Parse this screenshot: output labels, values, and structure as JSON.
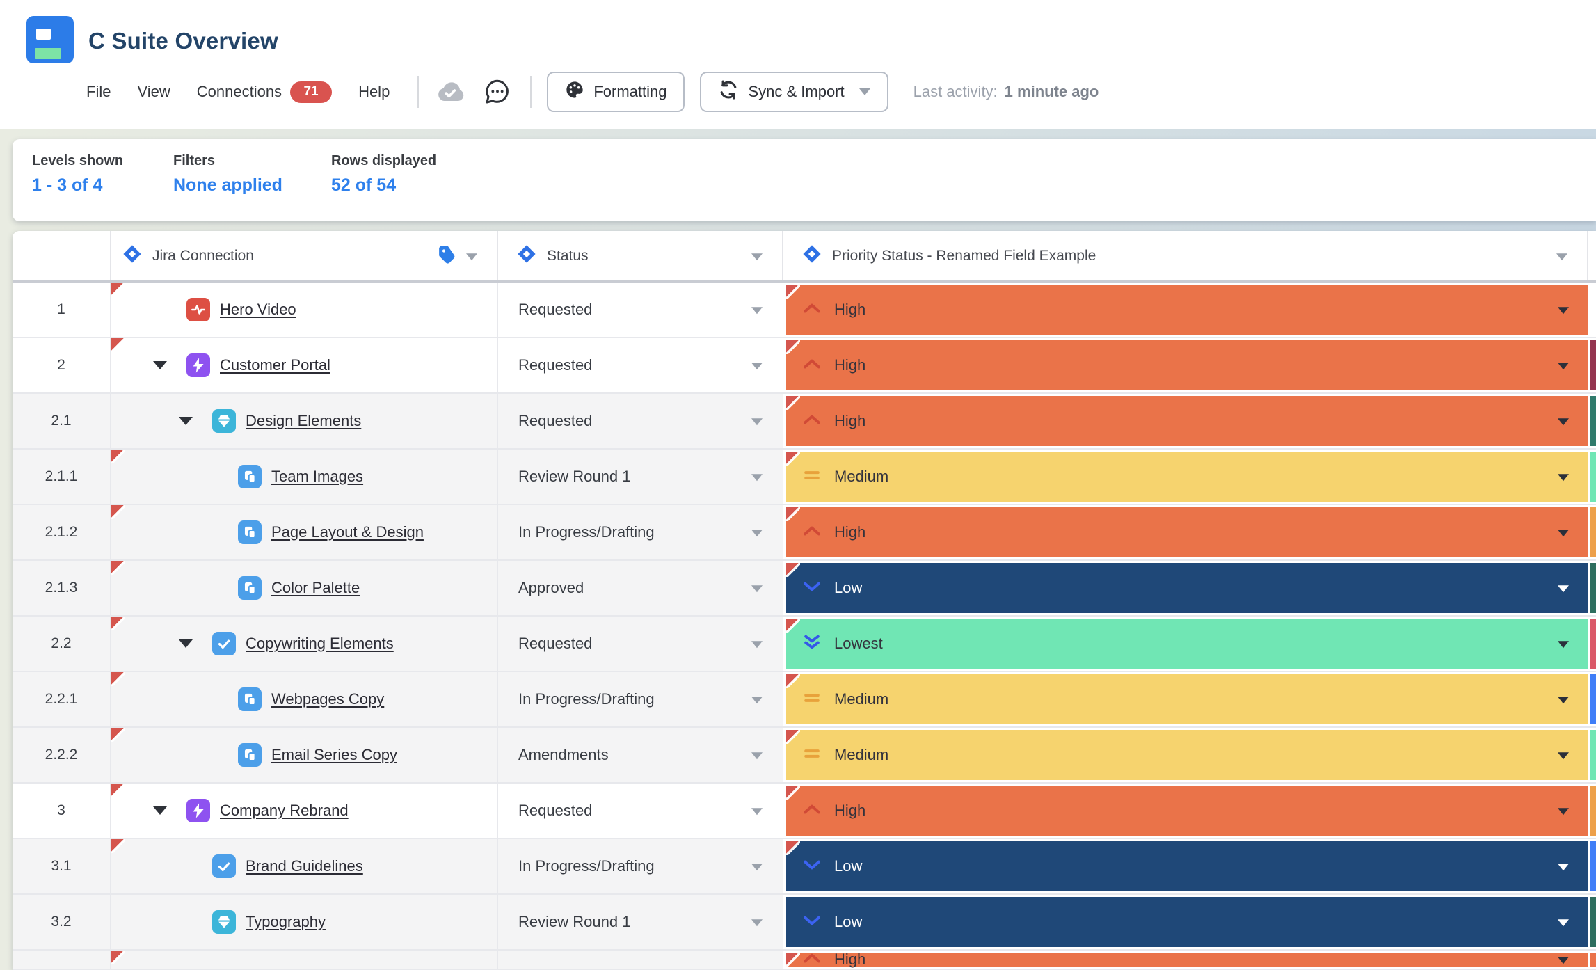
{
  "header": {
    "title": "C Suite Overview",
    "menu": [
      {
        "label": "File"
      },
      {
        "label": "View"
      },
      {
        "label": "Connections",
        "badge": "71"
      },
      {
        "label": "Help"
      }
    ],
    "formatting_button": "Formatting",
    "sync_button": "Sync & Import",
    "last_activity_label": "Last activity:",
    "last_activity_value": "1 minute ago"
  },
  "summary": {
    "items": [
      {
        "label": "Levels shown",
        "value": "1 - 3 of 4"
      },
      {
        "label": "Filters",
        "value": "None applied"
      },
      {
        "label": "Rows displayed",
        "value": "52 of 54"
      }
    ]
  },
  "table": {
    "columns": [
      {
        "key": "num",
        "label": ""
      },
      {
        "key": "jira",
        "label": "Jira Connection",
        "icons": [
          "jira-diamond-icon",
          "tag-icon",
          "dropdown-caret"
        ]
      },
      {
        "key": "status",
        "label": "Status",
        "icons": [
          "jira-diamond-icon",
          "dropdown-caret"
        ]
      },
      {
        "key": "priority",
        "label": "Priority Status - Renamed Field Example",
        "icons": [
          "jira-diamond-icon",
          "dropdown-caret"
        ]
      }
    ],
    "rows": [
      {
        "num": "1",
        "label": "Hero Video",
        "icon": "video",
        "level": 1,
        "expand": false,
        "jira_flag": true,
        "status": "Requested",
        "priority": "High",
        "priority_flag": true,
        "edge": "",
        "shade": "white"
      },
      {
        "num": "2",
        "label": "Customer Portal",
        "icon": "epic",
        "level": 1,
        "expand": true,
        "jira_flag": true,
        "status": "Requested",
        "priority": "High",
        "priority_flag": true,
        "edge": "#93344F",
        "shade": "white"
      },
      {
        "num": "2.1",
        "label": "Design Elements",
        "icon": "design",
        "level": 2,
        "expand": true,
        "jira_flag": false,
        "status": "Requested",
        "priority": "High",
        "priority_flag": true,
        "edge": "#2F7A6B",
        "shade": "gray"
      },
      {
        "num": "2.1.1",
        "label": "Team Images",
        "icon": "subtask",
        "level": 3,
        "expand": false,
        "jira_flag": true,
        "status": "Review Round 1",
        "priority": "Medium",
        "priority_flag": true,
        "edge": "#70E6B4",
        "shade": "gray"
      },
      {
        "num": "2.1.2",
        "label": "Page Layout & Design",
        "icon": "subtask",
        "level": 3,
        "expand": false,
        "jira_flag": true,
        "status": "In Progress/Drafting",
        "priority": "High",
        "priority_flag": true,
        "edge": "#EDA04A",
        "shade": "gray"
      },
      {
        "num": "2.1.3",
        "label": "Color Palette",
        "icon": "subtask",
        "level": 3,
        "expand": false,
        "jira_flag": true,
        "status": "Approved",
        "priority": "Low",
        "priority_flag": true,
        "edge": "#2E6E5F",
        "shade": "gray"
      },
      {
        "num": "2.2",
        "label": "Copywriting Elements",
        "icon": "task",
        "level": 2,
        "expand": true,
        "jira_flag": true,
        "status": "Requested",
        "priority": "Lowest",
        "priority_flag": true,
        "edge": "#DA5868",
        "shade": "gray"
      },
      {
        "num": "2.2.1",
        "label": "Webpages Copy",
        "icon": "subtask",
        "level": 3,
        "expand": false,
        "jira_flag": true,
        "status": "In Progress/Drafting",
        "priority": "Medium",
        "priority_flag": true,
        "edge": "#3F7EF7",
        "shade": "gray"
      },
      {
        "num": "2.2.2",
        "label": "Email Series Copy",
        "icon": "subtask",
        "level": 3,
        "expand": false,
        "jira_flag": true,
        "status": "Amendments",
        "priority": "Medium",
        "priority_flag": true,
        "edge": "#70E6B4",
        "shade": "gray"
      },
      {
        "num": "3",
        "label": "Company Rebrand",
        "icon": "epic",
        "level": 1,
        "expand": true,
        "jira_flag": true,
        "status": "Requested",
        "priority": "High",
        "priority_flag": true,
        "edge": "#EDA04A",
        "shade": "white"
      },
      {
        "num": "3.1",
        "label": "Brand Guidelines",
        "icon": "task",
        "level": 2,
        "expand": false,
        "jira_flag": true,
        "status": "In Progress/Drafting",
        "priority": "Low",
        "priority_flag": true,
        "edge": "#3F7EF7",
        "shade": "gray"
      },
      {
        "num": "3.2",
        "label": "Typography",
        "icon": "design",
        "level": 2,
        "expand": false,
        "jira_flag": false,
        "status": "Review Round 1",
        "priority": "Low",
        "priority_flag": false,
        "edge": "#2E6E5F",
        "shade": "gray"
      },
      {
        "num": "",
        "label": "",
        "icon": null,
        "level": 1,
        "expand": false,
        "jira_flag": true,
        "status": "",
        "priority": "High",
        "priority_flag": true,
        "edge": "#EA7349",
        "shade": "gray",
        "partial": true
      }
    ]
  },
  "priority_styles": {
    "High": {
      "bg": "#EA7349",
      "icon": "chevron-up-icon",
      "icon_color": "#D14A36",
      "text_color": "#33323C",
      "caret_color": "#2B2F3A"
    },
    "Medium": {
      "bg": "#F6D36E",
      "icon": "equals-icon",
      "icon_color": "#E8A23B",
      "text_color": "#33323C",
      "caret_color": "#2B2F3A"
    },
    "Low": {
      "bg": "#1F4878",
      "icon": "chevron-down-icon",
      "icon_color": "#3C63F2",
      "text_color": "#FFFFFF",
      "caret_color": "#FFFFFF"
    },
    "Lowest": {
      "bg": "#70E6B4",
      "icon": "double-chevron-down-icon",
      "icon_color": "#3558E8",
      "text_color": "#33323C",
      "caret_color": "#2B2F3A"
    }
  },
  "jira_icon_styles": {
    "video": {
      "bg": "#DD4F43",
      "glyph": "pulse-icon"
    },
    "epic": {
      "bg": "#8E52F0",
      "glyph": "bolt-icon"
    },
    "design": {
      "bg": "#3CB5D9",
      "glyph": "gem-icon"
    },
    "task": {
      "bg": "#4C9FE9",
      "glyph": "check-icon"
    },
    "subtask": {
      "bg": "#4C9FE9",
      "glyph": "stacked-squares-icon"
    }
  },
  "colors": {
    "badge": "#D9534F",
    "summary_value": "#2E80EC",
    "row_alt": "#F4F4F5",
    "flag": "#D5564E",
    "diamond": "#2E71E5"
  }
}
